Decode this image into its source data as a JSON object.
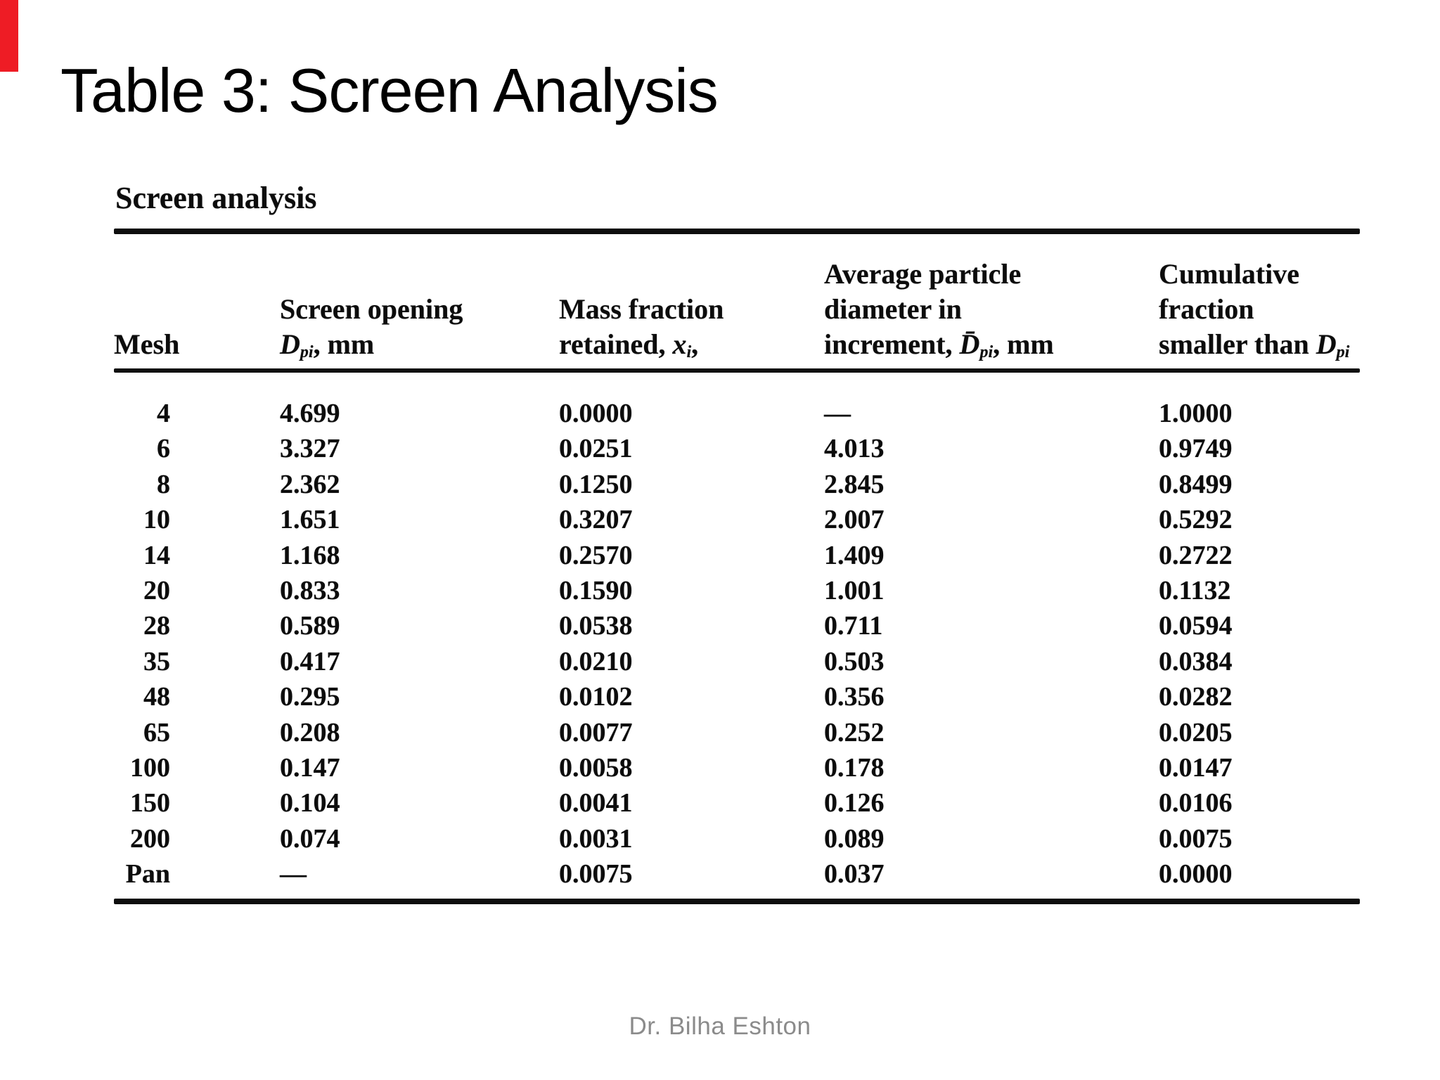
{
  "slide": {
    "title": "Table 3: Screen Analysis",
    "footer": "Dr. Bilha Eshton",
    "accent_color": "#ee1c25"
  },
  "table": {
    "caption": "Screen analysis",
    "headers": {
      "mesh": "Mesh",
      "opening_line1": "Screen opening",
      "opening_d": "D",
      "opening_d_sub": "pi",
      "opening_rest": ", mm",
      "mass_line1": "Mass fraction",
      "mass_line2_pre": "retained, ",
      "mass_x": "x",
      "mass_x_sub": "i",
      "mass_line2_post": ",",
      "avg_line1": "Average particle",
      "avg_line2": "diameter in",
      "avg_line3_pre": "increment, ",
      "avg_d": "D̄",
      "avg_d_sub": "pi",
      "avg_rest": ", mm",
      "cum_line1": "Cumulative",
      "cum_line2": "fraction",
      "cum_line3_pre": "smaller than ",
      "cum_d": "D",
      "cum_d_sub": "pi"
    },
    "rows": [
      {
        "mesh": "4",
        "opening": "4.699",
        "mass": "0.0000",
        "avg": "—",
        "cum": "1.0000"
      },
      {
        "mesh": "6",
        "opening": "3.327",
        "mass": "0.0251",
        "avg": "4.013",
        "cum": "0.9749"
      },
      {
        "mesh": "8",
        "opening": "2.362",
        "mass": "0.1250",
        "avg": "2.845",
        "cum": "0.8499"
      },
      {
        "mesh": "10",
        "opening": "1.651",
        "mass": "0.3207",
        "avg": "2.007",
        "cum": "0.5292"
      },
      {
        "mesh": "14",
        "opening": "1.168",
        "mass": "0.2570",
        "avg": "1.409",
        "cum": "0.2722"
      },
      {
        "mesh": "20",
        "opening": "0.833",
        "mass": "0.1590",
        "avg": "1.001",
        "cum": "0.1132"
      },
      {
        "mesh": "28",
        "opening": "0.589",
        "mass": "0.0538",
        "avg": "0.711",
        "cum": "0.0594"
      },
      {
        "mesh": "35",
        "opening": "0.417",
        "mass": "0.0210",
        "avg": "0.503",
        "cum": "0.0384"
      },
      {
        "mesh": "48",
        "opening": "0.295",
        "mass": "0.0102",
        "avg": "0.356",
        "cum": "0.0282"
      },
      {
        "mesh": "65",
        "opening": "0.208",
        "mass": "0.0077",
        "avg": "0.252",
        "cum": "0.0205"
      },
      {
        "mesh": "100",
        "opening": "0.147",
        "mass": "0.0058",
        "avg": "0.178",
        "cum": "0.0147"
      },
      {
        "mesh": "150",
        "opening": "0.104",
        "mass": "0.0041",
        "avg": "0.126",
        "cum": "0.0106"
      },
      {
        "mesh": "200",
        "opening": "0.074",
        "mass": "0.0031",
        "avg": "0.089",
        "cum": "0.0075"
      },
      {
        "mesh": "Pan",
        "opening": "—",
        "mass": "0.0075",
        "avg": "0.037",
        "cum": "0.0000"
      }
    ]
  }
}
